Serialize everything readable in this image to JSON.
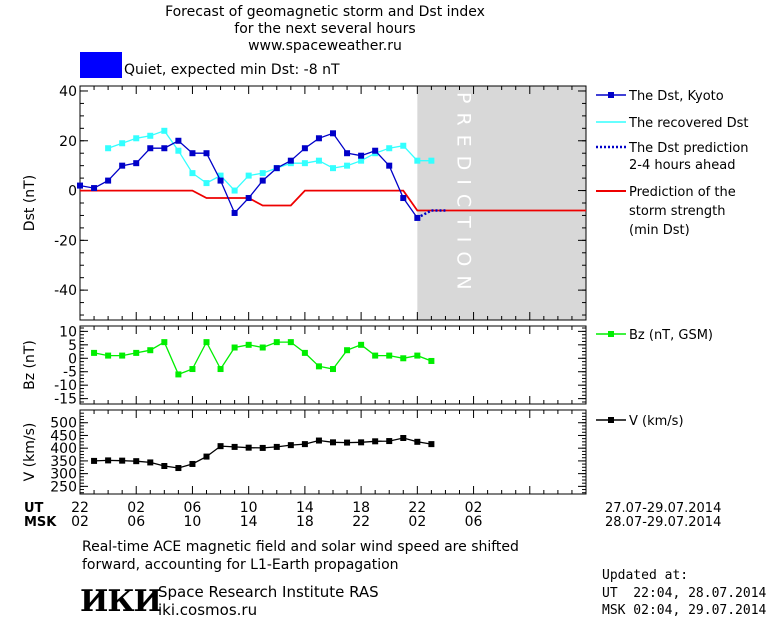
{
  "title": {
    "line1": "Forecast of geomagnetic storm and Dst index",
    "line2": "for the next several hours",
    "line3": "www.spaceweather.ru"
  },
  "status": {
    "color": "#0000ff",
    "text": "Quiet, expected min Dst: -8 nT"
  },
  "colors": {
    "dst": "#0000c8",
    "recovered": "#33ffff",
    "prediction": "#ee0000",
    "bz": "#00ee00",
    "v": "#000000",
    "shade": "#d8d8d8"
  },
  "prediction_label": "PREDICTION",
  "legend": {
    "dst": "The Dst, Kyoto",
    "recovered": "The recovered Dst",
    "dst_pred_1": "The Dst prediction",
    "dst_pred_2": "2-4 hours ahead",
    "storm_1": "Prediction of the",
    "storm_2": "storm strength",
    "storm_3": "(min Dst)",
    "bz": "Bz (nT, GSM)",
    "v": "V (km/s)"
  },
  "chart_data": [
    {
      "type": "line",
      "ylabel": "Dst (nT)",
      "ylim": [
        -52,
        42
      ],
      "yticks": [
        "40",
        "20",
        "0",
        "-20",
        "-40"
      ],
      "xlim": [
        0,
        36
      ],
      "x": [
        0,
        1,
        2,
        3,
        4,
        5,
        6,
        7,
        8,
        9,
        10,
        11,
        12,
        13,
        14,
        15,
        16,
        17,
        18,
        19,
        20,
        21,
        22,
        23,
        24,
        25,
        26,
        27,
        28,
        29,
        30
      ],
      "series": [
        {
          "name": "The Dst, Kyoto",
          "x": [
            0,
            1,
            2,
            3,
            4,
            5,
            6,
            7,
            8,
            9,
            10,
            11,
            12,
            13,
            14,
            15,
            16,
            17,
            18,
            19,
            20,
            21,
            22,
            23,
            24
          ],
          "values": [
            2,
            1,
            4,
            10,
            11,
            17,
            17,
            20,
            15,
            15,
            4,
            -9,
            -3,
            4,
            9,
            12,
            17,
            21,
            23,
            15,
            14,
            16,
            10,
            -3,
            -11
          ]
        },
        {
          "name": "The recovered Dst",
          "x": [
            2,
            3,
            4,
            5,
            6,
            7,
            8,
            9,
            10,
            11,
            12,
            13,
            14,
            15,
            16,
            17,
            18,
            19,
            20,
            21,
            22,
            23,
            24,
            25
          ],
          "values": [
            17,
            19,
            21,
            22,
            24,
            16,
            7,
            3,
            6,
            0,
            6,
            7,
            9,
            11,
            11,
            12,
            9,
            10,
            12,
            15,
            17,
            18,
            12,
            12
          ]
        },
        {
          "name": "The Dst prediction 2-4 hours ahead",
          "x": [
            24,
            25,
            26
          ],
          "values": [
            -11,
            -8,
            -8
          ]
        },
        {
          "name": "Prediction of the storm strength (min Dst)",
          "x": [
            0,
            8,
            9,
            12,
            13,
            14,
            15,
            16,
            17,
            18,
            19,
            20,
            21,
            22,
            23,
            24,
            25,
            26,
            27,
            28,
            29,
            30,
            36
          ],
          "values": [
            0,
            0,
            -3,
            -3,
            -6,
            -6,
            -6,
            0,
            0,
            0,
            0,
            0,
            0,
            0,
            0,
            -8,
            -8,
            -8,
            -8,
            -8,
            -8,
            -8,
            -8
          ]
        }
      ],
      "prediction_region_start": 24
    },
    {
      "type": "line",
      "ylabel": "Bz (nT)",
      "ylim": [
        -17,
        12
      ],
      "yticks": [
        "10",
        "5",
        "0",
        "-5",
        "-10",
        "-15"
      ],
      "series": [
        {
          "name": "Bz (nT, GSM)",
          "x": [
            1,
            2,
            3,
            4,
            5,
            6,
            7,
            8,
            9,
            10,
            11,
            12,
            13,
            14,
            15,
            16,
            17,
            18,
            19,
            20,
            21,
            22,
            23,
            24,
            25
          ],
          "values": [
            2,
            1,
            1,
            2,
            3,
            6,
            -6,
            -4,
            6,
            -4,
            4,
            5,
            4,
            6,
            6,
            2,
            -3,
            -4,
            3,
            5,
            1,
            1,
            0,
            1,
            -1
          ]
        }
      ]
    },
    {
      "type": "line",
      "ylabel": "V (km/s)",
      "ylim": [
        220,
        550
      ],
      "yticks": [
        "500",
        "450",
        "400",
        "350",
        "300",
        "250"
      ],
      "series": [
        {
          "name": "V (km/s)",
          "x": [
            1,
            2,
            3,
            4,
            5,
            6,
            7,
            8,
            9,
            10,
            11,
            12,
            13,
            14,
            15,
            16,
            17,
            18,
            19,
            20,
            21,
            22,
            23,
            24,
            25
          ],
          "values": [
            350,
            352,
            351,
            349,
            344,
            330,
            322,
            338,
            367,
            408,
            405,
            402,
            401,
            405,
            412,
            416,
            430,
            423,
            422,
            423,
            427,
            428,
            440,
            425,
            416
          ]
        }
      ]
    }
  ],
  "x_axis": {
    "ut_label": "UT",
    "msk_label": "MSK",
    "ut_ticks": [
      "22",
      "02",
      "06",
      "10",
      "14",
      "18",
      "22",
      "02"
    ],
    "msk_ticks": [
      "02",
      "06",
      "10",
      "14",
      "18",
      "22",
      "02",
      "06"
    ],
    "ut_range": "27.07-29.07.2014",
    "msk_range": "28.07-29.07.2014"
  },
  "footer": {
    "note_line1": "Real-time ACE magnetic field and solar wind speed are shifted",
    "note_line2": "forward, accounting for L1-Earth propagation",
    "institute": "Space Research Institute RAS",
    "site": "iki.cosmos.ru",
    "logo": "ИКИ",
    "updated_label": "Updated at:",
    "updated_ut": "UT  22:04, 28.07.2014",
    "updated_msk": "MSK 02:04, 29.07.2014"
  }
}
